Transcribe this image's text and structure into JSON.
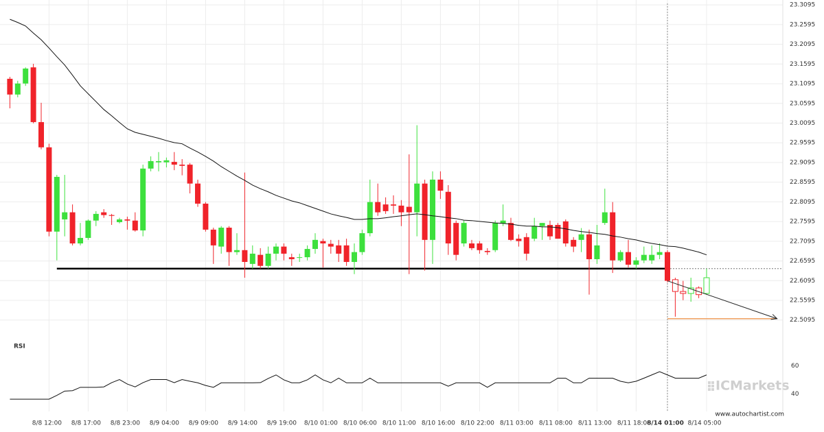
{
  "chart_data": {
    "type": "candlestick",
    "categories": [
      null,
      null,
      null,
      null,
      null,
      "8/8 12:00",
      null,
      null,
      null,
      null,
      "8/8 17:00",
      null,
      null,
      null,
      null,
      "8/8 23:00",
      null,
      null,
      null,
      null,
      "8/9 04:00",
      null,
      null,
      null,
      null,
      "8/9 09:00",
      null,
      null,
      null,
      null,
      "8/9 14:00",
      null,
      null,
      null,
      null,
      "8/9 19:00",
      null,
      null,
      null,
      null,
      "8/10 01:00",
      null,
      null,
      null,
      null,
      "8/10 06:00",
      null,
      null,
      null,
      null,
      "8/10 11:00",
      null,
      null,
      null,
      null,
      "8/10 16:00",
      null,
      null,
      null,
      null,
      "8/10 22:00",
      null,
      null,
      null,
      null,
      "8/11 03:00",
      null,
      null,
      null,
      null,
      "8/11 08:00",
      null,
      null,
      null,
      null,
      "8/11 13:00",
      null,
      null,
      null,
      null,
      "8/11 18:00",
      null,
      null,
      null,
      "8/14 01:00",
      null,
      null,
      null,
      null,
      "8/14 05:00"
    ],
    "highlight_index": 84,
    "open": [
      23.122,
      23.082,
      23.11,
      23.151,
      23.012,
      22.948,
      22.734,
      22.765,
      22.783,
      22.704,
      22.718,
      22.762,
      22.783,
      22.776,
      22.758,
      22.765,
      22.762,
      22.737,
      22.894,
      22.91,
      22.91,
      22.911,
      22.904,
      22.904,
      22.856,
      22.805,
      22.739,
      22.696,
      22.744,
      22.682,
      22.687,
      22.652,
      22.675,
      22.647,
      22.678,
      22.696,
      22.669,
      22.668,
      22.669,
      22.69,
      22.71,
      22.703,
      22.699,
      22.699,
      22.657,
      22.682,
      22.73,
      22.809,
      22.803,
      22.803,
      22.8,
      22.797,
      22.783,
      22.856,
      22.713,
      22.866,
      22.835,
      22.756,
      22.704,
      22.704,
      22.704,
      22.685,
      22.687,
      22.755,
      22.756,
      22.716,
      22.72,
      22.716,
      22.748,
      22.751,
      22.751,
      22.76,
      22.713,
      22.713,
      22.727,
      22.664,
      22.756,
      22.783,
      22.661,
      22.682,
      22.65,
      22.661,
      22.661,
      22.675,
      22.682,
      22.612,
      22.582,
      22.577,
      22.591,
      22.577
    ],
    "high": [
      23.127,
      23.117,
      23.151,
      23.16,
      23.061,
      22.957,
      22.878,
      22.878,
      22.803,
      22.756,
      22.765,
      22.786,
      22.791,
      22.779,
      22.769,
      22.772,
      22.783,
      22.904,
      22.925,
      22.936,
      22.922,
      22.936,
      22.918,
      22.908,
      22.866,
      22.809,
      22.744,
      22.748,
      22.748,
      22.73,
      22.884,
      22.699,
      22.692,
      22.696,
      22.704,
      22.704,
      22.678,
      22.678,
      22.699,
      22.73,
      22.716,
      22.713,
      22.713,
      22.716,
      22.704,
      22.739,
      22.866,
      22.856,
      22.821,
      22.826,
      22.814,
      22.93,
      23.004,
      22.866,
      22.887,
      22.887,
      22.852,
      22.762,
      22.762,
      22.713,
      22.71,
      22.692,
      22.762,
      22.803,
      22.769,
      22.727,
      22.73,
      22.769,
      22.756,
      22.762,
      22.756,
      22.765,
      22.72,
      22.743,
      22.739,
      22.751,
      22.843,
      22.809,
      22.687,
      22.713,
      22.669,
      22.696,
      22.699,
      22.704,
      22.687,
      22.617,
      22.609,
      22.617,
      22.595,
      22.64
    ],
    "low": [
      23.047,
      23.075,
      23.104,
      23.009,
      22.943,
      22.722,
      22.661,
      22.722,
      22.699,
      22.699,
      22.713,
      22.748,
      22.769,
      22.751,
      22.755,
      22.739,
      22.734,
      22.722,
      22.887,
      22.887,
      22.897,
      22.89,
      22.877,
      22.831,
      22.797,
      22.734,
      22.652,
      22.678,
      22.647,
      22.675,
      22.617,
      22.64,
      22.64,
      22.64,
      22.661,
      22.661,
      22.647,
      22.657,
      22.661,
      22.678,
      22.643,
      22.678,
      22.657,
      22.647,
      22.626,
      22.675,
      22.722,
      22.774,
      22.779,
      22.779,
      22.748,
      22.626,
      22.722,
      22.635,
      22.652,
      22.817,
      22.675,
      22.661,
      22.696,
      22.687,
      22.678,
      22.675,
      22.682,
      22.748,
      22.71,
      22.696,
      22.661,
      22.71,
      22.713,
      22.713,
      22.716,
      22.696,
      22.682,
      22.682,
      22.574,
      22.652,
      22.751,
      22.629,
      22.657,
      22.643,
      22.64,
      22.654,
      22.652,
      22.664,
      22.605,
      22.518,
      22.56,
      22.556,
      22.565,
      22.574
    ],
    "close": [
      23.082,
      23.11,
      23.148,
      23.012,
      22.948,
      22.734,
      22.873,
      22.783,
      22.704,
      22.718,
      22.762,
      22.779,
      22.776,
      22.774,
      22.765,
      22.762,
      22.737,
      22.894,
      22.913,
      22.913,
      22.915,
      22.904,
      22.901,
      22.856,
      22.805,
      22.739,
      22.699,
      22.744,
      22.682,
      22.687,
      22.657,
      22.678,
      22.647,
      22.678,
      22.696,
      22.678,
      22.664,
      22.669,
      22.69,
      22.713,
      22.704,
      22.696,
      22.678,
      22.657,
      22.682,
      22.73,
      22.809,
      22.783,
      22.786,
      22.8,
      22.783,
      22.783,
      22.856,
      22.713,
      22.866,
      22.838,
      22.704,
      22.675,
      22.756,
      22.692,
      22.687,
      22.682,
      22.756,
      22.762,
      22.713,
      22.71,
      22.678,
      22.748,
      22.756,
      22.722,
      22.716,
      22.704,
      22.696,
      22.727,
      22.664,
      22.699,
      22.783,
      22.661,
      22.682,
      22.65,
      22.661,
      22.675,
      22.675,
      22.682,
      22.609,
      22.582,
      22.577,
      22.591,
      22.574,
      22.617
    ],
    "up_color": "#3de03d",
    "down_color": "#f0232a",
    "ylim": [
      22.469,
      23.322
    ],
    "yticks": [
      23.3095,
      23.2595,
      23.2095,
      23.1595,
      23.1095,
      23.0595,
      23.0095,
      22.9595,
      22.9095,
      22.8595,
      22.8095,
      22.7595,
      22.7095,
      22.6595,
      22.6095,
      22.5595,
      22.5095
    ],
    "grid": true,
    "moving_average": {
      "color": "#111111",
      "values": [
        23.273,
        23.265,
        23.256,
        23.238,
        23.221,
        23.2,
        23.178,
        23.157,
        23.131,
        23.104,
        23.084,
        23.064,
        23.044,
        23.028,
        23.011,
        22.995,
        22.986,
        22.981,
        22.976,
        22.971,
        22.965,
        22.96,
        22.957,
        22.946,
        22.936,
        22.925,
        22.913,
        22.899,
        22.887,
        22.875,
        22.864,
        22.852,
        22.843,
        22.835,
        22.826,
        22.819,
        22.812,
        22.807,
        22.8,
        22.793,
        22.786,
        22.779,
        22.774,
        22.77,
        22.765,
        22.765,
        22.767,
        22.767,
        22.769,
        22.772,
        22.774,
        22.777,
        22.779,
        22.777,
        22.774,
        22.772,
        22.769,
        22.767,
        22.763,
        22.762,
        22.76,
        22.758,
        22.756,
        22.755,
        22.753,
        22.75,
        22.748,
        22.748,
        22.746,
        22.746,
        22.744,
        22.741,
        22.737,
        22.734,
        22.732,
        22.729,
        22.727,
        22.723,
        22.72,
        22.716,
        22.713,
        22.708,
        22.704,
        22.701,
        22.697,
        22.696,
        22.692,
        22.687,
        22.682,
        22.675
      ]
    },
    "support": {
      "value": 22.64,
      "start": 6,
      "end": 84,
      "color": "#000000"
    },
    "forecast": {
      "start_index": 84,
      "start": 22.609,
      "end_index": 98,
      "end": 22.513,
      "color": "#222222"
    },
    "target": {
      "value": 22.513,
      "color": "#f0a060"
    },
    "rsi": {
      "label": "RSI",
      "color": "#111111",
      "ylim": [
        30,
        68
      ],
      "yticks": [
        60,
        40
      ],
      "values": [
        36.3,
        36.3,
        36.3,
        36.3,
        36.3,
        36.3,
        39,
        42,
        42.3,
        44.7,
        44.7,
        44.7,
        45,
        48,
        50.2,
        47,
        45,
        48,
        50.2,
        50.2,
        50.2,
        48,
        50.2,
        49,
        47.9,
        46,
        44.7,
        47.9,
        47.9,
        47.9,
        47.9,
        47.9,
        48,
        51,
        53.5,
        50,
        47.9,
        47.9,
        50,
        53.5,
        50,
        47.9,
        51.2,
        47.9,
        47.9,
        47.9,
        51.2,
        47.9,
        47.9,
        47.9,
        47.9,
        47.9,
        47.9,
        47.9,
        47.9,
        47.9,
        45.5,
        47.9,
        47.9,
        47.9,
        47.9,
        44.7,
        47.9,
        47.9,
        47.9,
        47.9,
        47.9,
        47.9,
        47.9,
        47.9,
        51.2,
        51.2,
        47.9,
        47.9,
        51.2,
        51.2,
        51.2,
        51.2,
        49,
        47.9,
        49,
        51.2,
        53.5,
        55.8,
        53.5,
        51.2,
        51.2,
        51.2,
        51.2,
        53.5
      ]
    },
    "watermark": "ICMarkets",
    "source": "www.autochartist.com"
  }
}
